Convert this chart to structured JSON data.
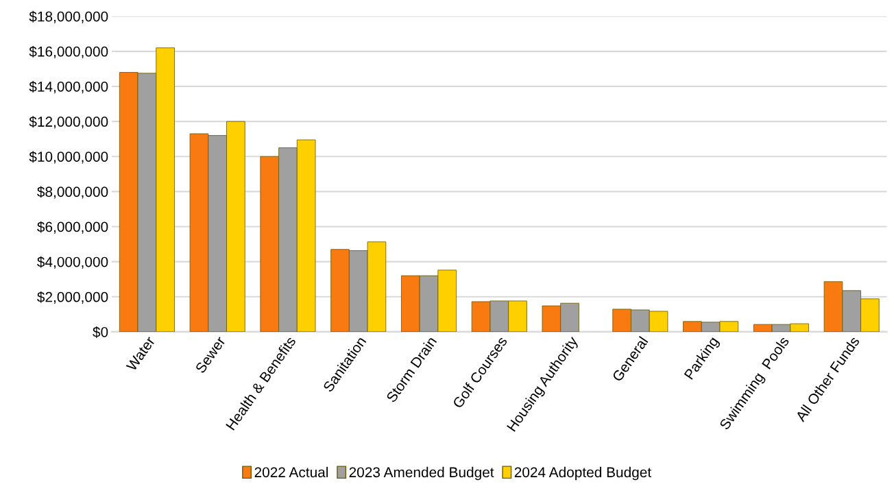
{
  "chart_data": {
    "type": "bar",
    "categories": [
      "Water",
      "Sewer",
      "Health & Benefits",
      "Sanitation",
      "Storm Drain",
      "Golf Courses",
      "Housing Authority",
      "General",
      "Parking",
      "Swimming  Pools",
      "All Other Funds"
    ],
    "series": [
      {
        "name": "2022 Actual",
        "color": "#f97a10",
        "values": [
          14800000,
          11300000,
          10000000,
          4700000,
          3200000,
          1720000,
          1480000,
          1290000,
          590000,
          420000,
          2860000
        ]
      },
      {
        "name": "2023 Amended Budget",
        "color": "#a0a0a0",
        "values": [
          14750000,
          11200000,
          10500000,
          4630000,
          3200000,
          1760000,
          1630000,
          1250000,
          550000,
          420000,
          2350000
        ]
      },
      {
        "name": "2024 Adopted Budget",
        "color": "#ffd000",
        "values": [
          16200000,
          12000000,
          10950000,
          5130000,
          3520000,
          1760000,
          null,
          1170000,
          590000,
          460000,
          1880000
        ]
      }
    ],
    "ylim": [
      0,
      18000000
    ],
    "yticks": [
      {
        "value": 0,
        "label": "$0"
      },
      {
        "value": 2000000,
        "label": "$2,000,000"
      },
      {
        "value": 4000000,
        "label": "$4,000,000"
      },
      {
        "value": 6000000,
        "label": "$6,000,000"
      },
      {
        "value": 8000000,
        "label": "$8,000,000"
      },
      {
        "value": 10000000,
        "label": "$10,000,000"
      },
      {
        "value": 12000000,
        "label": "$12,000,000"
      },
      {
        "value": 14000000,
        "label": "$14,000,000"
      },
      {
        "value": 16000000,
        "label": "$16,000,000"
      },
      {
        "value": 18000000,
        "label": "$18,000,000"
      }
    ],
    "grid": "y",
    "legend": "bottom"
  }
}
